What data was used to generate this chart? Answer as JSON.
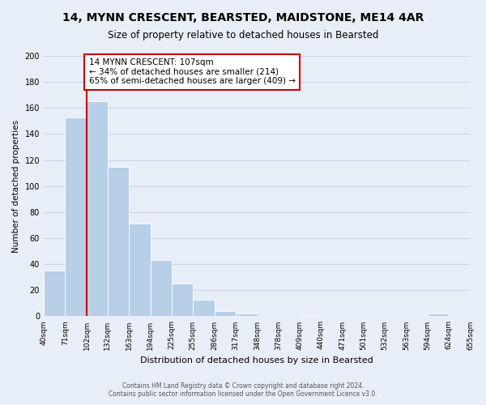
{
  "title": "14, MYNN CRESCENT, BEARSTED, MAIDSTONE, ME14 4AR",
  "subtitle": "Size of property relative to detached houses in Bearsted",
  "xlabel": "Distribution of detached houses by size in Bearsted",
  "ylabel": "Number of detached properties",
  "bar_values": [
    35,
    153,
    165,
    115,
    71,
    43,
    25,
    13,
    4,
    2,
    0,
    0,
    1,
    0,
    0,
    0,
    0,
    0,
    2,
    0
  ],
  "bin_edges": [
    40,
    71,
    102,
    132,
    163,
    194,
    225,
    255,
    286,
    317,
    348,
    378,
    409,
    440,
    471,
    501,
    532,
    563,
    594,
    624,
    655
  ],
  "tick_labels": [
    "40sqm",
    "71sqm",
    "102sqm",
    "132sqm",
    "163sqm",
    "194sqm",
    "225sqm",
    "255sqm",
    "286sqm",
    "317sqm",
    "348sqm",
    "378sqm",
    "409sqm",
    "440sqm",
    "471sqm",
    "501sqm",
    "532sqm",
    "563sqm",
    "594sqm",
    "624sqm",
    "655sqm"
  ],
  "bar_color": "#b8cfe8",
  "vline_color": "#cc0000",
  "vline_x_label": "102sqm",
  "annotation_text": "14 MYNN CRESCENT: 107sqm\n← 34% of detached houses are smaller (214)\n65% of semi-detached houses are larger (409) →",
  "annotation_box_facecolor": "#ffffff",
  "annotation_box_edgecolor": "#cc0000",
  "ylim": [
    0,
    200
  ],
  "yticks": [
    0,
    20,
    40,
    60,
    80,
    100,
    120,
    140,
    160,
    180,
    200
  ],
  "grid_color": "#c8d4e8",
  "background_color": "#e8eef8",
  "footer_line1": "Contains HM Land Registry data © Crown copyright and database right 2024.",
  "footer_line2": "Contains public sector information licensed under the Open Government Licence v3.0."
}
